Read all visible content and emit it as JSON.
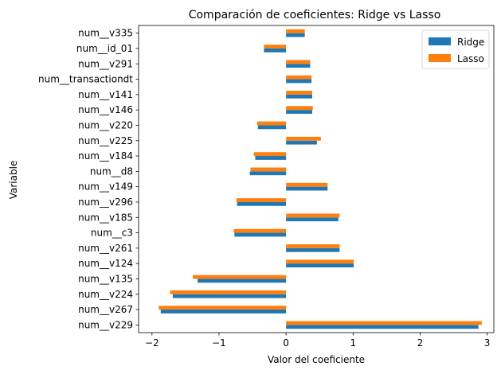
{
  "chart_data": {
    "type": "bar",
    "orientation": "horizontal",
    "title": "Comparación de coeficientes: Ridge vs Lasso",
    "xlabel": "Valor del coeficiente",
    "ylabel": "Variable",
    "xlim": [
      -2.2,
      3.1
    ],
    "xticks": [
      -2,
      -1,
      0,
      1,
      2,
      3
    ],
    "xtick_labels": [
      "−2",
      "−1",
      "0",
      "1",
      "2",
      "3"
    ],
    "grid": false,
    "legend_position": "top-right",
    "categories": [
      "num__v229",
      "num__v267",
      "num__v224",
      "num__v135",
      "num__v124",
      "num__v261",
      "num__c3",
      "num__v185",
      "num__v296",
      "num__v149",
      "num__d8",
      "num__v184",
      "num__v225",
      "num__v220",
      "num__v146",
      "num__v141",
      "num__transactiondt",
      "num__v291",
      "num__id_01",
      "num__v335"
    ],
    "series": [
      {
        "name": "Ridge",
        "color": "#1f77b4",
        "values": [
          2.87,
          -1.87,
          -1.69,
          -1.32,
          1.01,
          0.8,
          -0.77,
          0.78,
          -0.73,
          0.62,
          -0.54,
          -0.46,
          0.46,
          -0.42,
          0.39,
          0.39,
          0.38,
          0.36,
          -0.33,
          0.28
        ]
      },
      {
        "name": "Lasso",
        "color": "#ff7f0e",
        "values": [
          2.92,
          -1.9,
          -1.73,
          -1.39,
          1.01,
          0.8,
          -0.78,
          0.8,
          -0.74,
          0.62,
          -0.53,
          -0.48,
          0.52,
          -0.43,
          0.4,
          0.39,
          0.38,
          0.36,
          -0.33,
          0.28
        ]
      }
    ]
  }
}
